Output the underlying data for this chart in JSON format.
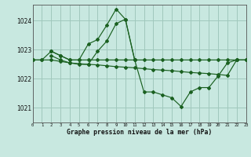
{
  "bg_color": "#c8e8e0",
  "grid_color": "#a0c8bc",
  "line_color": "#1a6020",
  "xlabel": "Graphe pression niveau de la mer (hPa)",
  "xlim": [
    0,
    23
  ],
  "ylim": [
    1020.5,
    1024.55
  ],
  "yticks": [
    1021,
    1022,
    1023,
    1024
  ],
  "xticks": [
    0,
    1,
    2,
    3,
    4,
    5,
    6,
    7,
    8,
    9,
    10,
    11,
    12,
    13,
    14,
    15,
    16,
    17,
    18,
    19,
    20,
    21,
    22,
    23
  ],
  "series": [
    {
      "x": [
        2,
        3,
        4,
        5,
        6,
        7,
        8,
        9,
        10,
        11
      ],
      "y": [
        1022.95,
        1022.8,
        1022.65,
        1022.65,
        1023.2,
        1023.35,
        1023.85,
        1024.4,
        1024.05,
        1022.65
      ]
    },
    {
      "x": [
        0,
        1,
        2,
        3,
        4,
        5,
        6,
        7,
        8,
        9,
        10,
        11,
        12,
        13,
        14,
        15,
        16,
        17,
        18,
        19,
        20,
        21,
        22,
        23
      ],
      "y": [
        1022.65,
        1022.65,
        1022.95,
        1022.8,
        1022.65,
        1022.65,
        1022.65,
        1022.65,
        1022.65,
        1022.65,
        1022.65,
        1022.65,
        1022.65,
        1022.65,
        1022.65,
        1022.65,
        1022.65,
        1022.65,
        1022.65,
        1022.65,
        1022.65,
        1022.65,
        1022.65,
        1022.65
      ]
    },
    {
      "x": [
        0,
        1,
        2,
        3,
        4,
        5,
        6,
        7,
        8,
        9,
        10,
        11,
        12,
        13,
        14,
        15,
        16,
        17,
        18,
        19,
        20,
        21,
        22,
        23
      ],
      "y": [
        1022.65,
        1022.65,
        1022.65,
        1022.6,
        1022.55,
        1022.52,
        1022.5,
        1022.48,
        1022.45,
        1022.42,
        1022.4,
        1022.38,
        1022.35,
        1022.32,
        1022.3,
        1022.28,
        1022.25,
        1022.22,
        1022.2,
        1022.18,
        1022.15,
        1022.12,
        1022.65,
        1022.65
      ]
    },
    {
      "x": [
        2,
        3,
        4,
        5,
        6,
        7,
        8,
        9,
        10,
        11,
        12,
        13,
        14,
        15,
        16,
        17,
        18,
        19,
        20,
        21,
        22,
        23
      ],
      "y": [
        1022.8,
        1022.65,
        1022.55,
        1022.5,
        1022.5,
        1022.95,
        1023.3,
        1023.9,
        1024.05,
        1022.65,
        1021.55,
        1021.55,
        1021.45,
        1021.35,
        1021.05,
        1021.55,
        1021.7,
        1021.7,
        1022.1,
        1022.55,
        1022.65,
        1022.65
      ]
    }
  ]
}
